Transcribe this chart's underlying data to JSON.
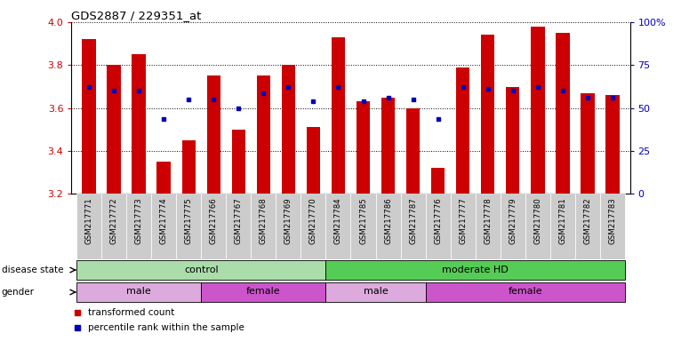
{
  "title": "GDS2887 / 229351_at",
  "samples": [
    "GSM217771",
    "GSM217772",
    "GSM217773",
    "GSM217774",
    "GSM217775",
    "GSM217766",
    "GSM217767",
    "GSM217768",
    "GSM217769",
    "GSM217770",
    "GSM217784",
    "GSM217785",
    "GSM217786",
    "GSM217787",
    "GSM217776",
    "GSM217777",
    "GSM217778",
    "GSM217779",
    "GSM217780",
    "GSM217781",
    "GSM217782",
    "GSM217783"
  ],
  "bar_heights": [
    3.92,
    3.8,
    3.85,
    3.35,
    3.45,
    3.75,
    3.5,
    3.75,
    3.8,
    3.51,
    3.93,
    3.63,
    3.65,
    3.6,
    3.32,
    3.79,
    3.94,
    3.7,
    3.98,
    3.95,
    3.67,
    3.66
  ],
  "blue_y": [
    3.7,
    3.68,
    3.68,
    3.55,
    3.64,
    3.64,
    3.6,
    3.67,
    3.7,
    3.63,
    3.7,
    3.63,
    3.65,
    3.64,
    3.55,
    3.7,
    3.69,
    3.68,
    3.7,
    3.68,
    3.65,
    3.65
  ],
  "ymin": 3.2,
  "ymax": 4.0,
  "yticks_left": [
    3.2,
    3.4,
    3.6,
    3.8,
    4.0
  ],
  "yticks_right": [
    0,
    25,
    50,
    75,
    100
  ],
  "yticks_right_labels": [
    "0",
    "25",
    "50",
    "75",
    "100%"
  ],
  "bar_color": "#cc0000",
  "blue_color": "#0000bb",
  "disease_state_groups": [
    {
      "label": "control",
      "start": 0,
      "end": 10,
      "color": "#aaddaa"
    },
    {
      "label": "moderate HD",
      "start": 10,
      "end": 22,
      "color": "#55cc55"
    }
  ],
  "gender_groups": [
    {
      "label": "male",
      "start": 0,
      "end": 5,
      "color": "#ddaadd"
    },
    {
      "label": "female",
      "start": 5,
      "end": 10,
      "color": "#cc55cc"
    },
    {
      "label": "male",
      "start": 10,
      "end": 14,
      "color": "#ddaadd"
    },
    {
      "label": "female",
      "start": 14,
      "end": 22,
      "color": "#cc55cc"
    }
  ],
  "legend_items": [
    {
      "label": "transformed count",
      "color": "#cc0000"
    },
    {
      "label": "percentile rank within the sample",
      "color": "#0000bb"
    }
  ],
  "tick_bg_color": "#cccccc"
}
